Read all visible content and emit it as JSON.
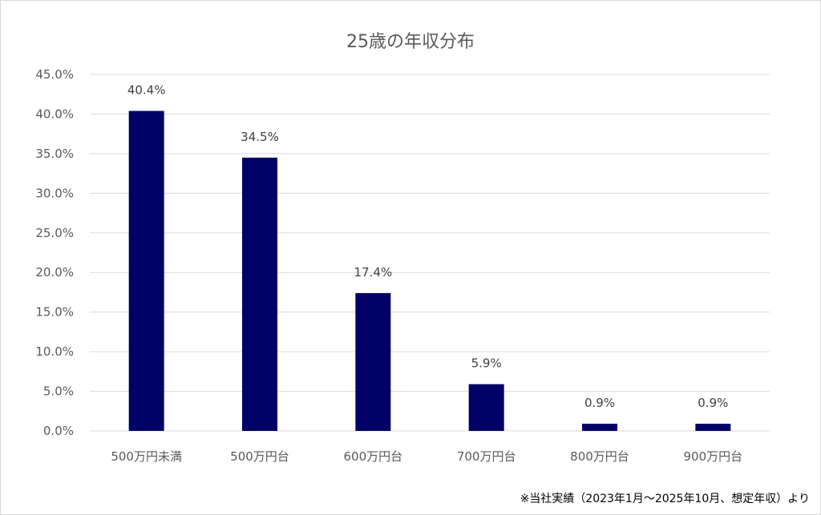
{
  "chart_data": {
    "type": "bar",
    "title": "25歳の年収分布",
    "categories": [
      "500万円未満",
      "500万円台",
      "600万円台",
      "700万円台",
      "800万円台",
      "900万円台"
    ],
    "values": [
      40.4,
      34.5,
      17.4,
      5.9,
      0.9,
      0.9
    ],
    "data_labels": [
      "40.4%",
      "34.5%",
      "17.4%",
      "5.9%",
      "0.9%",
      "0.9%"
    ],
    "yticks": [
      "0.0%",
      "5.0%",
      "10.0%",
      "15.0%",
      "20.0%",
      "25.0%",
      "30.0%",
      "35.0%",
      "40.0%",
      "45.0%"
    ],
    "ylim": [
      0,
      45
    ],
    "grid": true,
    "bar_color": "#000066",
    "grid_color": "#d9d9d9"
  },
  "footnote": "※当社実績（2023年1月～2025年10月、想定年収）より"
}
